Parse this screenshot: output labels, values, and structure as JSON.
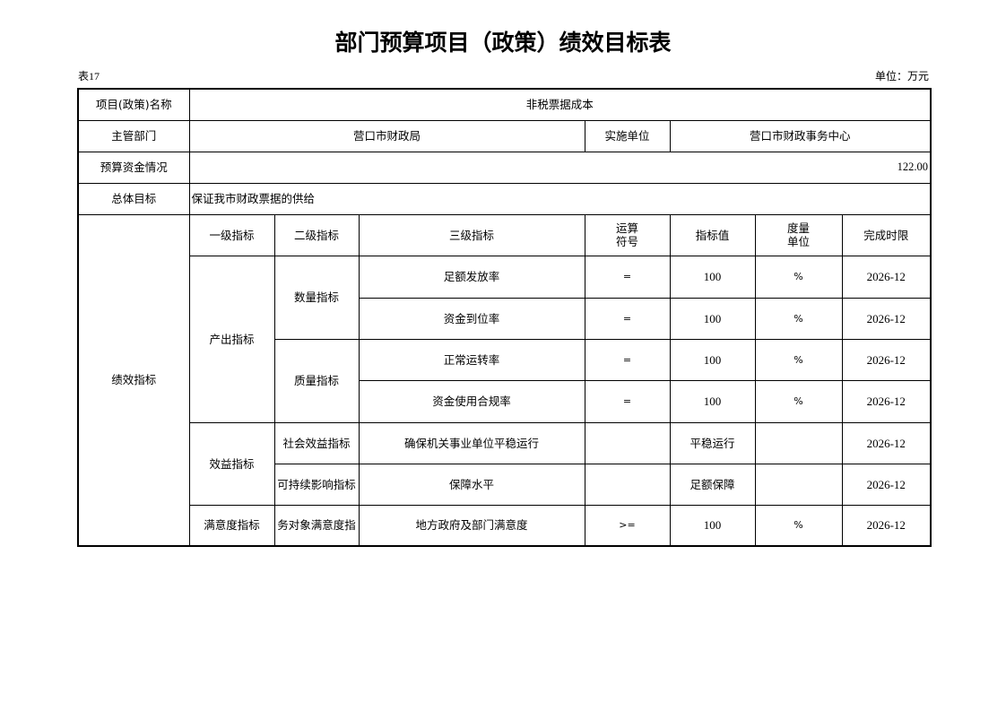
{
  "title": "部门预算项目（政策）绩效目标表",
  "table_no": "表17",
  "unit": "单位：万元",
  "info": {
    "name_label": "项目(政策)名称",
    "name_value": "非税票据成本",
    "dept_label": "主管部门",
    "dept_value": "营口市财政局",
    "impl_label": "实施单位",
    "impl_value": "营口市财政事务中心",
    "budget_label": "预算资金情况",
    "budget_value": "122.00",
    "goal_label": "总体目标",
    "goal_value": "保证我市财政票据的供给"
  },
  "perf": {
    "label": "绩效指标",
    "headers": [
      "一级指标",
      "二级指标",
      "三级指标",
      "运算\n符号",
      "指标值",
      "度量\n单位",
      "完成时限"
    ],
    "level1": [
      "产出指标",
      "效益指标",
      "满意度指标"
    ],
    "level2": [
      "数量指标",
      "质量指标",
      "社会效益指标",
      "可持续影响指标",
      "务对象满意度指"
    ],
    "rows": [
      {
        "name": "足额发放率",
        "op": "=",
        "value": "100",
        "unit": "%",
        "deadline": "2026-12"
      },
      {
        "name": "资金到位率",
        "op": "=",
        "value": "100",
        "unit": "%",
        "deadline": "2026-12"
      },
      {
        "name": "正常运转率",
        "op": "=",
        "value": "100",
        "unit": "%",
        "deadline": "2026-12"
      },
      {
        "name": "资金使用合规率",
        "op": "=",
        "value": "100",
        "unit": "%",
        "deadline": "2026-12"
      },
      {
        "name": "确保机关事业单位平稳运行",
        "op": "",
        "value": "平稳运行",
        "unit": "",
        "deadline": "2026-12"
      },
      {
        "name": "保障水平",
        "op": "",
        "value": "足额保障",
        "unit": "",
        "deadline": "2026-12"
      },
      {
        "name": "地方政府及部门满意度",
        "op": ">=",
        "value": "100",
        "unit": "%",
        "deadline": "2026-12"
      }
    ]
  }
}
